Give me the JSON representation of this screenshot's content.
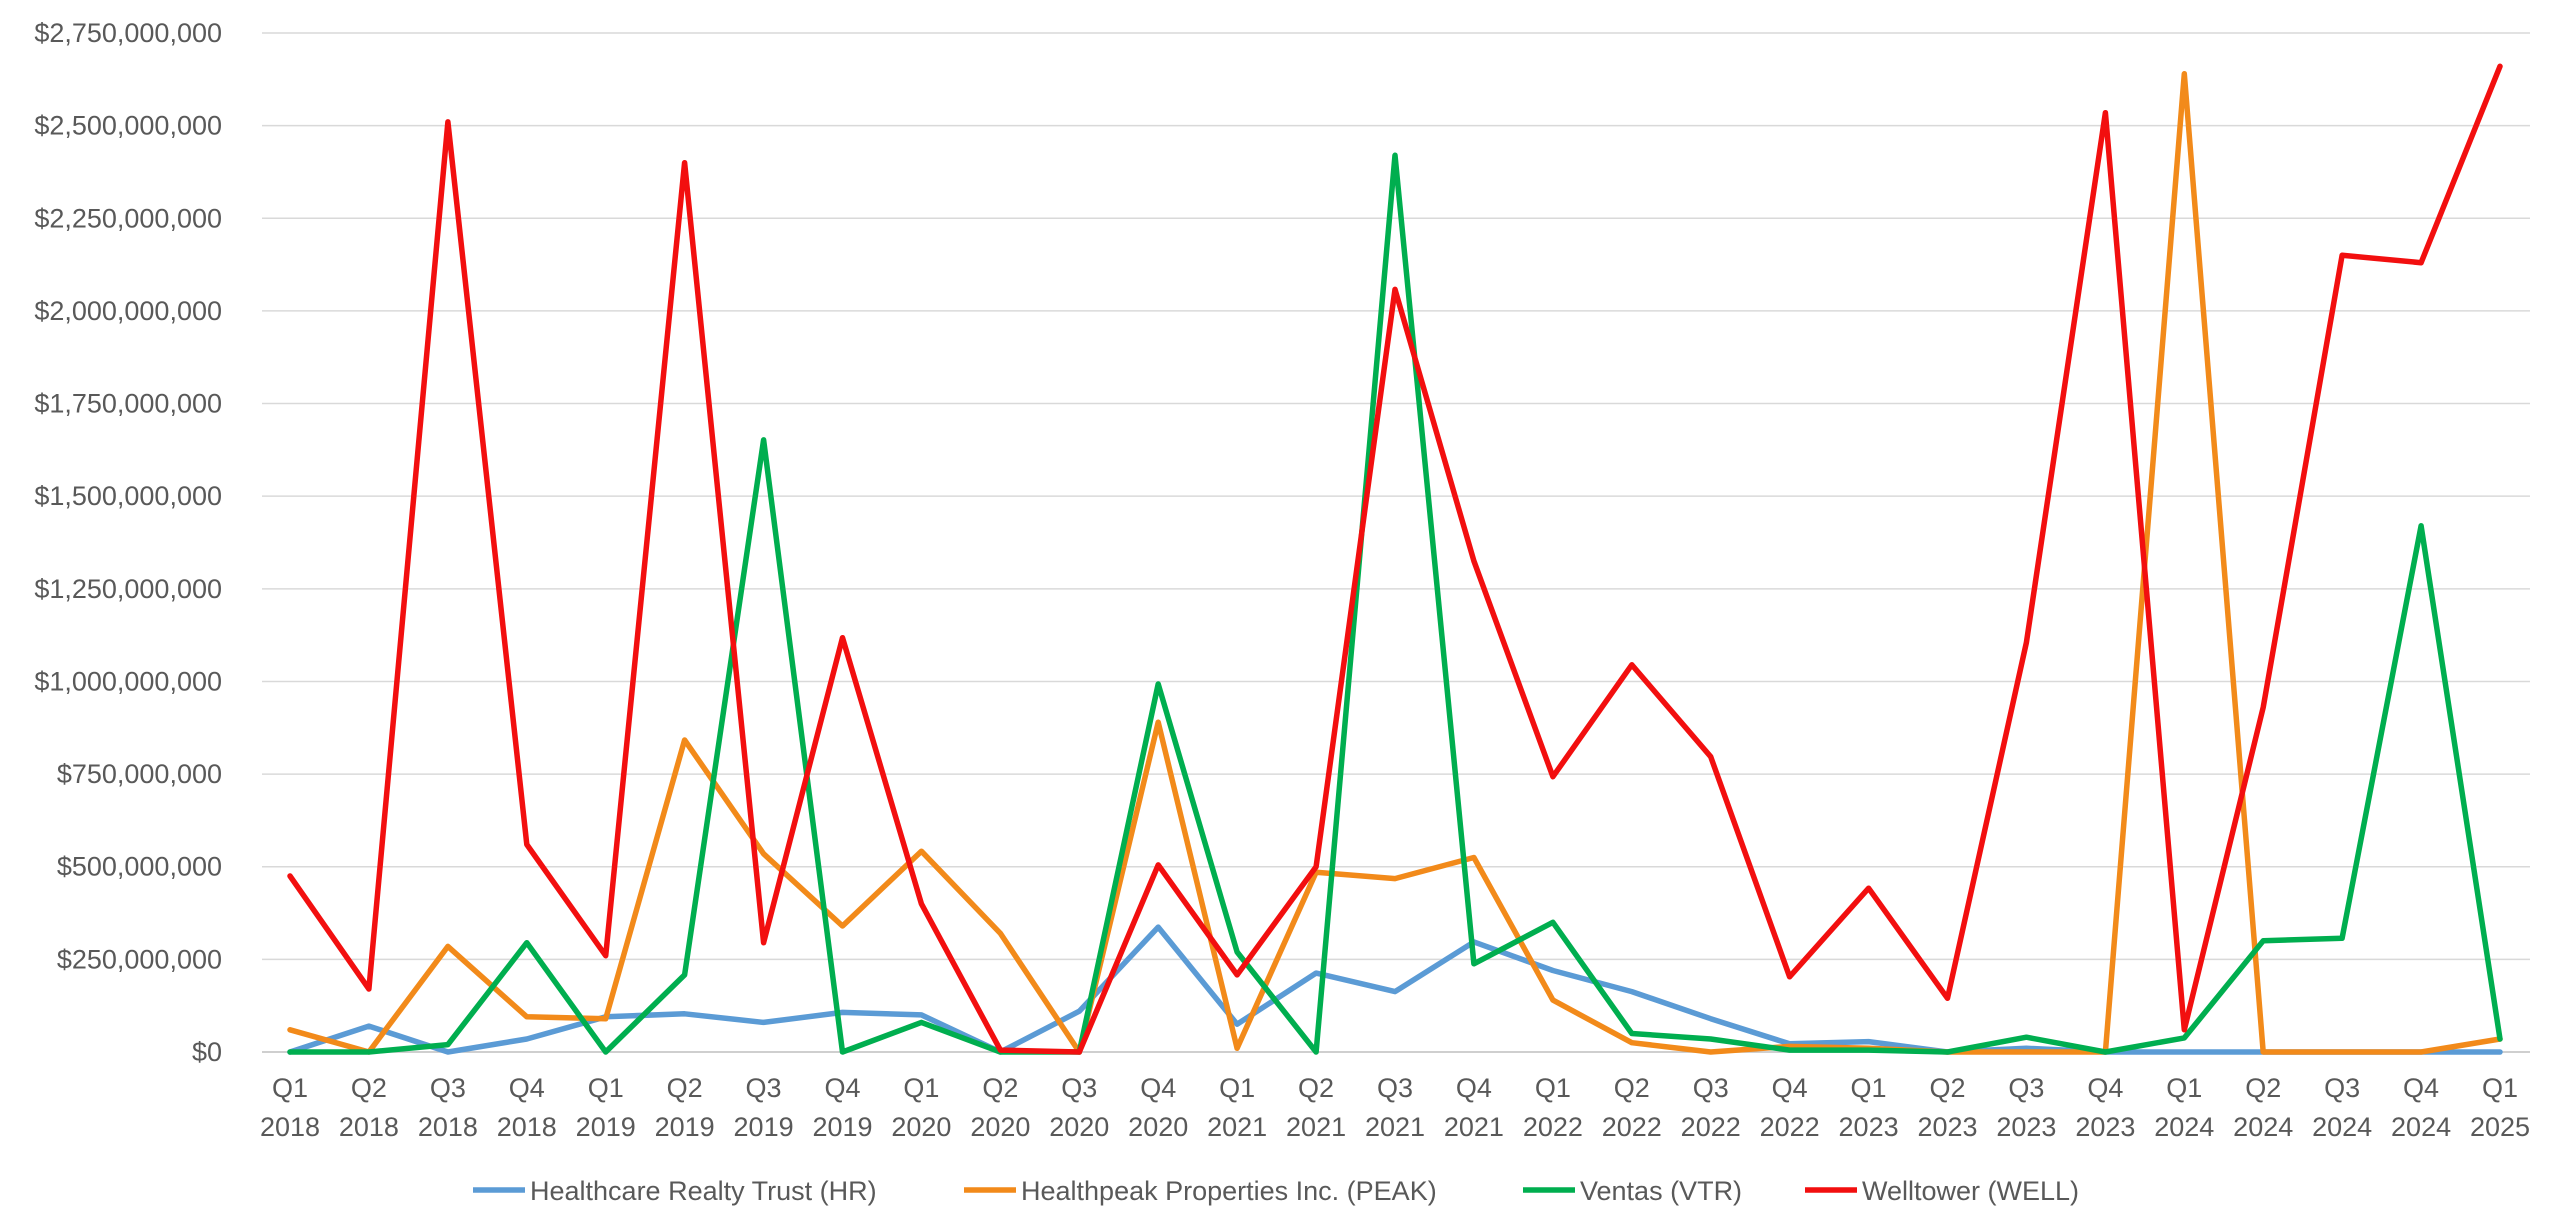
{
  "chart_data": {
    "type": "line",
    "title": "",
    "xlabel": "",
    "ylabel": "",
    "ylim": [
      0,
      2750000000
    ],
    "grid": true,
    "legend_position": "bottom",
    "y_ticks": [
      "$0",
      "$250,000,000",
      "$500,000,000",
      "$750,000,000",
      "$1,000,000,000",
      "$1,250,000,000",
      "$1,500,000,000",
      "$1,750,000,000",
      "$2,000,000,000",
      "$2,250,000,000",
      "$2,500,000,000",
      "$2,750,000,000"
    ],
    "categories": [
      [
        "Q1",
        "2018"
      ],
      [
        "Q2",
        "2018"
      ],
      [
        "Q3",
        "2018"
      ],
      [
        "Q4",
        "2018"
      ],
      [
        "Q1",
        "2019"
      ],
      [
        "Q2",
        "2019"
      ],
      [
        "Q3",
        "2019"
      ],
      [
        "Q4",
        "2019"
      ],
      [
        "Q1",
        "2020"
      ],
      [
        "Q2",
        "2020"
      ],
      [
        "Q3",
        "2020"
      ],
      [
        "Q4",
        "2020"
      ],
      [
        "Q1",
        "2021"
      ],
      [
        "Q2",
        "2021"
      ],
      [
        "Q3",
        "2021"
      ],
      [
        "Q4",
        "2021"
      ],
      [
        "Q1",
        "2022"
      ],
      [
        "Q2",
        "2022"
      ],
      [
        "Q3",
        "2022"
      ],
      [
        "Q4",
        "2022"
      ],
      [
        "Q1",
        "2023"
      ],
      [
        "Q2",
        "2023"
      ],
      [
        "Q3",
        "2023"
      ],
      [
        "Q4",
        "2023"
      ],
      [
        "Q1",
        "2024"
      ],
      [
        "Q2",
        "2024"
      ],
      [
        "Q3",
        "2024"
      ],
      [
        "Q4",
        "2024"
      ],
      [
        "Q1",
        "2025"
      ]
    ],
    "series": [
      {
        "name": "Healthcare Realty Trust (HR)",
        "color": "#5B9BD5",
        "values": [
          0,
          70000000,
          0,
          35000000,
          95000000,
          103000000,
          80000000,
          107000000,
          100000000,
          0,
          110000000,
          337000000,
          75000000,
          213000000,
          163000000,
          297000000,
          220000000,
          163000000,
          90000000,
          22000000,
          28000000,
          0,
          10000000,
          0,
          0,
          0,
          0,
          0,
          0
        ]
      },
      {
        "name": "Healthpeak Properties Inc. (PEAK)",
        "color": "#F28A1A",
        "values": [
          60000000,
          0,
          285000000,
          95000000,
          90000000,
          842000000,
          535000000,
          340000000,
          542000000,
          320000000,
          0,
          890000000,
          10000000,
          485000000,
          468000000,
          525000000,
          140000000,
          25000000,
          0,
          15000000,
          10000000,
          0,
          0,
          0,
          2640000000,
          0,
          0,
          0,
          35000000
        ]
      },
      {
        "name": "Ventas (VTR)",
        "color": "#00AE4F",
        "values": [
          0,
          0,
          20000000,
          295000000,
          0,
          208000000,
          1652000000,
          0,
          80000000,
          0,
          0,
          993000000,
          270000000,
          0,
          2420000000,
          238000000,
          350000000,
          50000000,
          35000000,
          5000000,
          5000000,
          0,
          40000000,
          0,
          38000000,
          300000000,
          307000000,
          1420000000,
          35000000
        ]
      },
      {
        "name": "Welltower (WELL)",
        "color": "#F20F0F",
        "values": [
          475000000,
          170000000,
          2510000000,
          560000000,
          260000000,
          2400000000,
          295000000,
          1118000000,
          400000000,
          5000000,
          0,
          505000000,
          208000000,
          500000000,
          2058000000,
          1325000000,
          743000000,
          1045000000,
          797000000,
          203000000,
          442000000,
          145000000,
          1105000000,
          2535000000,
          60000000,
          930000000,
          2150000000,
          2130000000,
          2660000000
        ]
      }
    ]
  }
}
